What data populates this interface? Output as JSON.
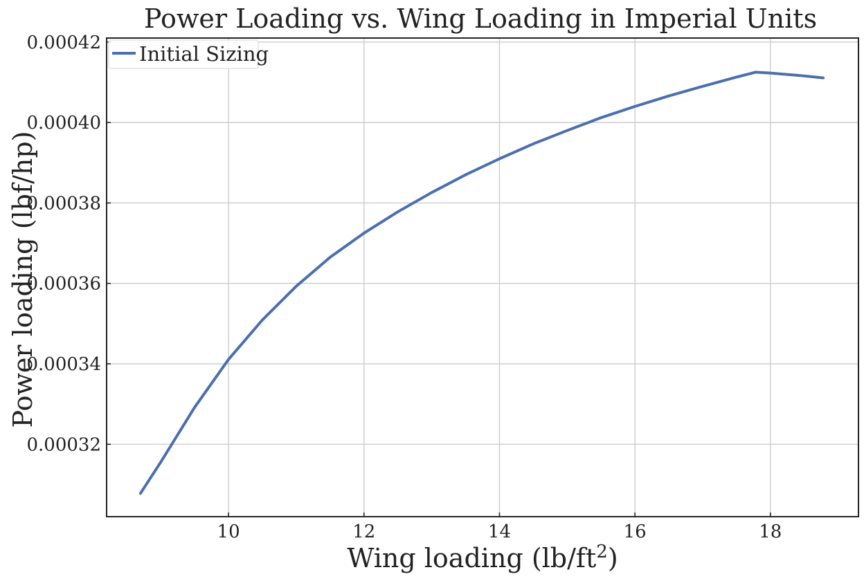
{
  "chart_data": {
    "type": "line",
    "title": "Power Loading vs. Wing Loading in Imperial Units",
    "xlabel": "Wing loading (lb/ft",
    "xlabel_sup": "2",
    "xlabel_end": ")",
    "ylabel": "Power loading (lbf/hp)",
    "xlim": [
      8.2,
      19.3
    ],
    "ylim": [
      0.000302,
      0.000421
    ],
    "xticks": [
      10,
      12,
      14,
      16,
      18
    ],
    "xtick_labels": [
      "10",
      "12",
      "14",
      "16",
      "18"
    ],
    "yticks": [
      0.00032,
      0.00034,
      0.00036,
      0.00038,
      0.0004,
      0.00042
    ],
    "ytick_labels": [
      "0.00032",
      "0.00034",
      "0.00036",
      "0.00038",
      "0.00040",
      "0.00042"
    ],
    "grid": true,
    "legend_position": "top-left",
    "series": [
      {
        "name": "Initial Sizing",
        "color": "#4a6fae",
        "x": [
          8.7,
          9.0,
          9.5,
          10.0,
          10.5,
          11.0,
          11.5,
          12.0,
          12.5,
          13.0,
          13.5,
          14.0,
          14.5,
          15.0,
          15.5,
          16.0,
          16.5,
          17.0,
          17.5,
          17.78,
          18.0,
          18.5,
          18.78
        ],
        "y": [
          0.0003078,
          0.0003156,
          0.0003292,
          0.0003411,
          0.0003509,
          0.0003593,
          0.0003665,
          0.0003725,
          0.0003778,
          0.0003826,
          0.000387,
          0.000391,
          0.0003947,
          0.000398,
          0.0004012,
          0.000404,
          0.0004066,
          0.000409,
          0.0004113,
          0.0004125,
          0.0004123,
          0.0004116,
          0.0004111
        ]
      }
    ]
  }
}
